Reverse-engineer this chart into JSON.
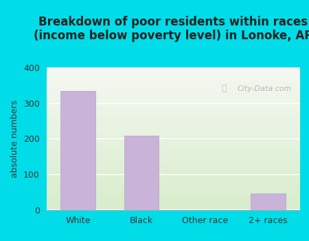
{
  "title_line1": "Breakdown of poor residents within races",
  "title_line2": "(income below poverty level) in Lonoke, AR",
  "categories": [
    "White",
    "Black",
    "Other race",
    "2+ races"
  ],
  "values": [
    335,
    208,
    0,
    45
  ],
  "bar_color": "#c9b3d9",
  "bar_edge_color": "#b8a0cc",
  "ylabel": "absolute numbers",
  "ylim": [
    0,
    400
  ],
  "yticks": [
    0,
    100,
    200,
    300,
    400
  ],
  "bg_outer": "#00dde8",
  "bg_inner_top": "#f5f8f2",
  "bg_inner_bottom": "#d8edcc",
  "title_fontsize": 12,
  "axis_fontsize": 9,
  "tick_fontsize": 9,
  "watermark": "City-Data.com",
  "title_color": "#222222"
}
